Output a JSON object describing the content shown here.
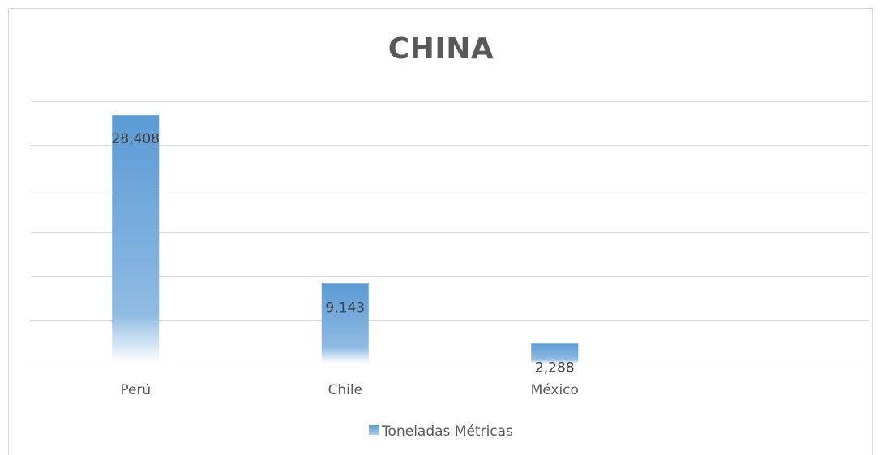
{
  "chart_data": {
    "type": "bar",
    "title": "CHINA",
    "categories": [
      "Perú",
      "Chile",
      "México"
    ],
    "series": [
      {
        "name": "Toneladas Métricas",
        "values": [
          28408,
          9143,
          2288
        ],
        "labels": [
          "28,408",
          "9,143",
          "2,288"
        ]
      }
    ],
    "ylim": [
      0,
      30000
    ],
    "grid": true,
    "legend": "bottom",
    "colors": {
      "bar_top": "#5b9bd5",
      "bar_bottom": "#ffffff",
      "grid": "#d9d9d9",
      "text": "#595959"
    }
  }
}
